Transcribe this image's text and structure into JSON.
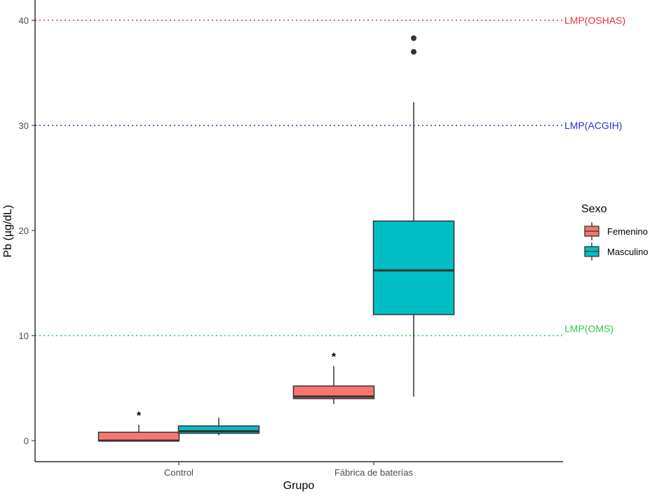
{
  "chart_data": {
    "type": "boxplot",
    "xlabel": "Grupo",
    "ylabel": "Pb (µg/dL)",
    "ylim": [
      -2,
      42
    ],
    "yticks": [
      0,
      10,
      20,
      30,
      40
    ],
    "grid": false,
    "legend_position": "right",
    "categories": [
      "Control",
      "Fábrica de baterías"
    ],
    "legend": {
      "title": "Sexo",
      "items": [
        {
          "name": "Femenino",
          "color": "#F8766D"
        },
        {
          "name": "Masculino",
          "color": "#00BFC4"
        }
      ]
    },
    "series": [
      {
        "name": "Femenino",
        "color": "#F8766D",
        "boxes": [
          {
            "category": "Control",
            "min": 0.0,
            "q1": 0.0,
            "median": 0.0,
            "q3": 0.8,
            "max": 1.5,
            "outliers": [],
            "annotation": "*"
          },
          {
            "category": "Fábrica de baterías",
            "min": 3.5,
            "q1": 4.0,
            "median": 4.2,
            "q3": 5.2,
            "max": 7.1,
            "outliers": [],
            "annotation": "*"
          }
        ]
      },
      {
        "name": "Masculino",
        "color": "#00BFC4",
        "boxes": [
          {
            "category": "Control",
            "min": 0.5,
            "q1": 0.7,
            "median": 0.9,
            "q3": 1.4,
            "max": 2.2,
            "outliers": []
          },
          {
            "category": "Fábrica de baterías",
            "min": 4.2,
            "q1": 12.0,
            "median": 16.2,
            "q3": 20.9,
            "max": 32.2,
            "outliers": [
              37.0,
              38.3
            ]
          }
        ]
      }
    ],
    "reference_lines": [
      {
        "value": 40,
        "label": "LMP(OSHAS)",
        "color": "#E8312E"
      },
      {
        "value": 30,
        "label": "LMP(ACGIH)",
        "color": "#2E2BD8"
      },
      {
        "value": 10,
        "label": "LMP(OMS)",
        "color": "#2ECC40"
      }
    ]
  }
}
